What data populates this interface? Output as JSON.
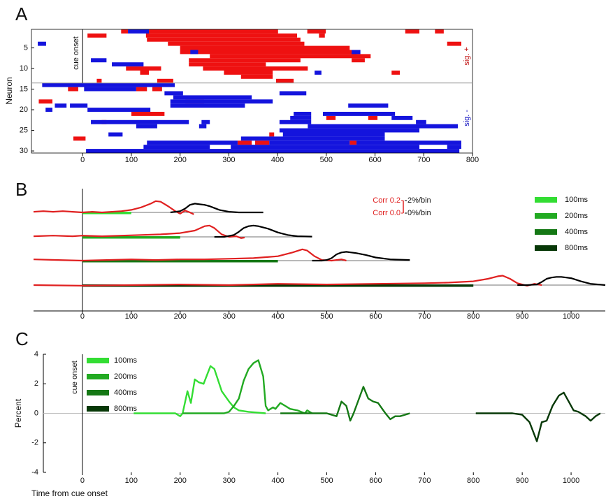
{
  "chart_data": [
    {
      "type": "raster",
      "letter": "A",
      "ylabel": "Neuron",
      "annotation": {
        "text": "cue onset",
        "x": 0
      },
      "xlim": [
        -105,
        800
      ],
      "xticks": [
        0,
        100,
        200,
        300,
        400,
        500,
        600,
        700,
        800
      ],
      "ylim": [
        0.5,
        30.5
      ],
      "yticks": [
        5,
        10,
        15,
        20,
        25,
        30
      ],
      "groups": [
        {
          "label": "sig. +",
          "color": "#c01010",
          "rows": [
            1,
            13
          ]
        },
        {
          "label": "sig. -",
          "color": "#1010c0",
          "rows": [
            14,
            30
          ]
        }
      ],
      "series": [
        {
          "color": "#ee1111",
          "segments": [
            [
              1,
              79,
              93
            ],
            [
              1,
              130,
              401
            ],
            [
              1,
              461,
              499
            ],
            [
              1,
              662,
              691
            ],
            [
              1,
              723,
              741
            ],
            [
              2,
              10,
              49
            ],
            [
              2,
              130,
              440
            ],
            [
              2,
              485,
              497
            ],
            [
              3,
              132,
              447
            ],
            [
              4,
              175,
              455
            ],
            [
              4,
              748,
              777
            ],
            [
              5,
              200,
              548
            ],
            [
              6,
              200,
              562
            ],
            [
              7,
              261,
              591
            ],
            [
              8,
              218,
              447
            ],
            [
              8,
              552,
              579
            ],
            [
              9,
              218,
              376
            ],
            [
              10,
              89,
              161
            ],
            [
              10,
              247,
              462
            ],
            [
              11,
              118,
              136
            ],
            [
              11,
              290,
              390
            ],
            [
              11,
              634,
              651
            ],
            [
              12,
              325,
              390
            ],
            [
              13,
              29,
              39
            ],
            [
              13,
              153,
              186
            ],
            [
              13,
              397,
              433
            ],
            [
              14,
              -9,
              10
            ],
            [
              15,
              -30,
              -9
            ],
            [
              15,
              110,
              132
            ],
            [
              15,
              143,
              163
            ],
            [
              18,
              -90,
              -62
            ],
            [
              18,
              211,
              249
            ],
            [
              21,
              100,
              168
            ],
            [
              22,
              500,
              519
            ],
            [
              22,
              586,
              605
            ],
            [
              23,
              39,
              49
            ],
            [
              26,
              383,
              393
            ],
            [
              27,
              -19,
              6
            ],
            [
              28,
              318,
              347
            ],
            [
              28,
              354,
              383
            ],
            [
              28,
              548,
              562
            ]
          ]
        },
        {
          "color": "#1414dd",
          "segments": [
            [
              1,
              93,
              136
            ],
            [
              4,
              -92,
              -75
            ],
            [
              6,
              221,
              237
            ],
            [
              6,
              552,
              570
            ],
            [
              8,
              17,
              49
            ],
            [
              9,
              60,
              125
            ],
            [
              11,
              476,
              490
            ],
            [
              14,
              -83,
              189
            ],
            [
              15,
              3,
              110
            ],
            [
              16,
              168,
              206
            ],
            [
              16,
              404,
              459
            ],
            [
              17,
              186,
              347
            ],
            [
              18,
              180,
              390
            ],
            [
              19,
              -57,
              -33
            ],
            [
              19,
              -26,
              10
            ],
            [
              19,
              180,
              333
            ],
            [
              19,
              545,
              627
            ],
            [
              20,
              -76,
              -62
            ],
            [
              20,
              10,
              139
            ],
            [
              21,
              433,
              469
            ],
            [
              21,
              493,
              641
            ],
            [
              22,
              426,
              469
            ],
            [
              22,
              634,
              677
            ],
            [
              23,
              17,
              218
            ],
            [
              23,
              244,
              261
            ],
            [
              23,
              404,
              469
            ],
            [
              23,
              684,
              705
            ],
            [
              24,
              110,
              153
            ],
            [
              24,
              239,
              254
            ],
            [
              24,
              462,
              770
            ],
            [
              25,
              404,
              691
            ],
            [
              26,
              53,
              82
            ],
            [
              26,
              411,
              620
            ],
            [
              27,
              325,
              620
            ],
            [
              28,
              132,
              318
            ],
            [
              28,
              383,
              548
            ],
            [
              28,
              562,
              777
            ],
            [
              29,
              125,
              261
            ],
            [
              29,
              304,
              691
            ],
            [
              29,
              748,
              777
            ],
            [
              30,
              7,
              773
            ]
          ]
        }
      ]
    },
    {
      "type": "traces",
      "letter": "B",
      "xlim": [
        -100,
        1070
      ],
      "xticks": [
        0,
        100,
        200,
        300,
        400,
        500,
        600,
        700,
        800,
        900,
        1000
      ],
      "scale_bar": {
        "red_color": "#e02020",
        "red_ticks": [
          {
            "value": 0.2,
            "label": "Corr 0.2"
          },
          {
            "value": 0,
            "label": "Corr 0.0"
          }
        ],
        "black_ticks": [
          {
            "value": 2,
            "label": "2%/bin"
          },
          {
            "value": 0,
            "label": "0%/bin"
          }
        ]
      },
      "rows": [
        {
          "name": "100ms",
          "color": "#33dd33",
          "bar_end": 100,
          "red": {
            "x": [
              -100,
              -80,
              -60,
              -40,
              -20,
              0,
              20,
              40,
              60,
              80,
              100,
              120,
              140,
              150,
              160,
              175,
              190,
              200,
              210,
              220,
              228
            ],
            "y": [
              0.01,
              0.02,
              0.01,
              0.02,
              0.01,
              0.0,
              0.01,
              0.0,
              0.01,
              0.02,
              0.04,
              0.08,
              0.14,
              0.18,
              0.17,
              0.1,
              0.02,
              -0.02,
              0.03,
              0.0,
              -0.03
            ]
          },
          "black": {
            "x": [
              180,
              200,
              210,
              220,
              230,
              240,
              250,
              260,
              270,
              280,
              300,
              320,
              340,
              370
            ],
            "y": [
              0,
              0.2,
              0.6,
              1.2,
              1.4,
              1.3,
              1.2,
              1.0,
              0.7,
              0.4,
              0.1,
              0,
              0,
              0
            ]
          }
        },
        {
          "name": "200ms",
          "color": "#22aa22",
          "bar_end": 200,
          "red": {
            "x": [
              -100,
              -60,
              -20,
              0,
              40,
              80,
              120,
              160,
              200,
              230,
              250,
              260,
              270,
              285,
              300,
              315,
              325,
              332
            ],
            "y": [
              0.01,
              0.02,
              0.01,
              0.02,
              0.01,
              0.02,
              0.03,
              0.04,
              0.06,
              0.1,
              0.17,
              0.18,
              0.14,
              0.04,
              0.0,
              0.01,
              -0.02,
              -0.01
            ]
          },
          "black": {
            "x": [
              270,
              290,
              310,
              320,
              330,
              340,
              350,
              360,
              380,
              400,
              420,
              440,
              470
            ],
            "y": [
              0,
              0,
              0.3,
              0.8,
              1.4,
              1.7,
              1.8,
              1.7,
              1.3,
              0.7,
              0.3,
              0.1,
              0.05
            ]
          }
        },
        {
          "name": "400ms",
          "color": "#157815",
          "bar_end": 400,
          "red": {
            "x": [
              -100,
              -50,
              0,
              50,
              100,
              150,
              200,
              250,
              300,
              350,
              400,
              430,
              450,
              460,
              475,
              490,
              510,
              530,
              540
            ],
            "y": [
              0.02,
              0.01,
              0.0,
              0.01,
              0.02,
              0.01,
              0.02,
              0.02,
              0.03,
              0.04,
              0.07,
              0.13,
              0.18,
              0.16,
              0.07,
              0.01,
              0.0,
              0.02,
              0.0
            ]
          },
          "black": {
            "x": [
              470,
              490,
              500,
              510,
              520,
              530,
              540,
              550,
              560,
              580,
              600,
              630,
              670
            ],
            "y": [
              0,
              0,
              0.1,
              0.4,
              1.0,
              1.3,
              1.4,
              1.3,
              1.2,
              0.9,
              0.5,
              0.2,
              0.1
            ]
          }
        },
        {
          "name": "800ms",
          "color": "#073807",
          "bar_end": 800,
          "red": {
            "x": [
              -100,
              0,
              100,
              200,
              300,
              400,
              500,
              600,
              700,
              750,
              800,
              830,
              850,
              860,
              875,
              890,
              910,
              925,
              940
            ],
            "y": [
              0.0,
              -0.01,
              0.0,
              0.01,
              0.0,
              0.02,
              0.01,
              0.02,
              0.03,
              0.04,
              0.06,
              0.1,
              0.14,
              0.15,
              0.1,
              0.03,
              -0.01,
              0.02,
              0.0
            ]
          },
          "black": {
            "x": [
              890,
              910,
              930,
              940,
              950,
              960,
              970,
              980,
              990,
              1000,
              1020,
              1040,
              1070
            ],
            "y": [
              0,
              0,
              0.1,
              0.5,
              1.0,
              1.2,
              1.3,
              1.3,
              1.2,
              1.1,
              0.6,
              0.2,
              0.0
            ]
          }
        }
      ]
    },
    {
      "type": "line",
      "letter": "C",
      "ylabel": "Percent",
      "xlabel": "Time from cue onset",
      "annotation": {
        "text": "cue onset",
        "x": 0
      },
      "xlim": [
        -80,
        1070
      ],
      "xticks": [
        0,
        100,
        200,
        300,
        400,
        500,
        600,
        700,
        800,
        900,
        1000
      ],
      "ylim": [
        -4,
        4
      ],
      "yticks": [
        -4,
        -2,
        0,
        2,
        4
      ],
      "series": [
        {
          "name": "100ms",
          "color": "#33dd33",
          "x": [
            105,
            190,
            200,
            205,
            215,
            222,
            230,
            238,
            248,
            262,
            270,
            285,
            300,
            310,
            320,
            340,
            375
          ],
          "y": [
            0,
            0,
            -0.2,
            0,
            1.5,
            0.7,
            2.3,
            2.1,
            2.0,
            3.2,
            3.0,
            1.5,
            0.8,
            0.4,
            0.2,
            0.1,
            0
          ]
        },
        {
          "name": "200ms",
          "color": "#22aa22",
          "x": [
            205,
            290,
            300,
            310,
            320,
            330,
            340,
            350,
            360,
            370,
            375,
            380,
            390,
            395,
            405,
            415,
            425,
            440,
            455,
            460,
            470
          ],
          "y": [
            0,
            0,
            0.1,
            0.5,
            1.0,
            2.2,
            3.0,
            3.4,
            3.6,
            2.5,
            0.5,
            0.2,
            0.4,
            0.3,
            0.7,
            0.5,
            0.3,
            0.2,
            0,
            0.2,
            0
          ]
        },
        {
          "name": "400ms",
          "color": "#157815",
          "x": [
            405,
            500,
            520,
            530,
            540,
            548,
            555,
            575,
            585,
            595,
            605,
            620,
            630,
            640,
            650,
            670
          ],
          "y": [
            0,
            0,
            -0.2,
            0.8,
            0.5,
            -0.5,
            0,
            1.8,
            1.0,
            0.8,
            0.7,
            0,
            -0.4,
            -0.2,
            -0.2,
            0
          ]
        },
        {
          "name": "800ms",
          "color": "#073807",
          "x": [
            805,
            880,
            900,
            915,
            930,
            940,
            950,
            962,
            975,
            985,
            995,
            1005,
            1015,
            1030,
            1040,
            1050,
            1060
          ],
          "y": [
            0,
            0,
            -0.1,
            -0.6,
            -1.9,
            -0.6,
            -0.5,
            0.5,
            1.2,
            1.4,
            0.8,
            0.2,
            0.1,
            -0.2,
            -0.5,
            -0.2,
            0
          ]
        }
      ]
    }
  ]
}
